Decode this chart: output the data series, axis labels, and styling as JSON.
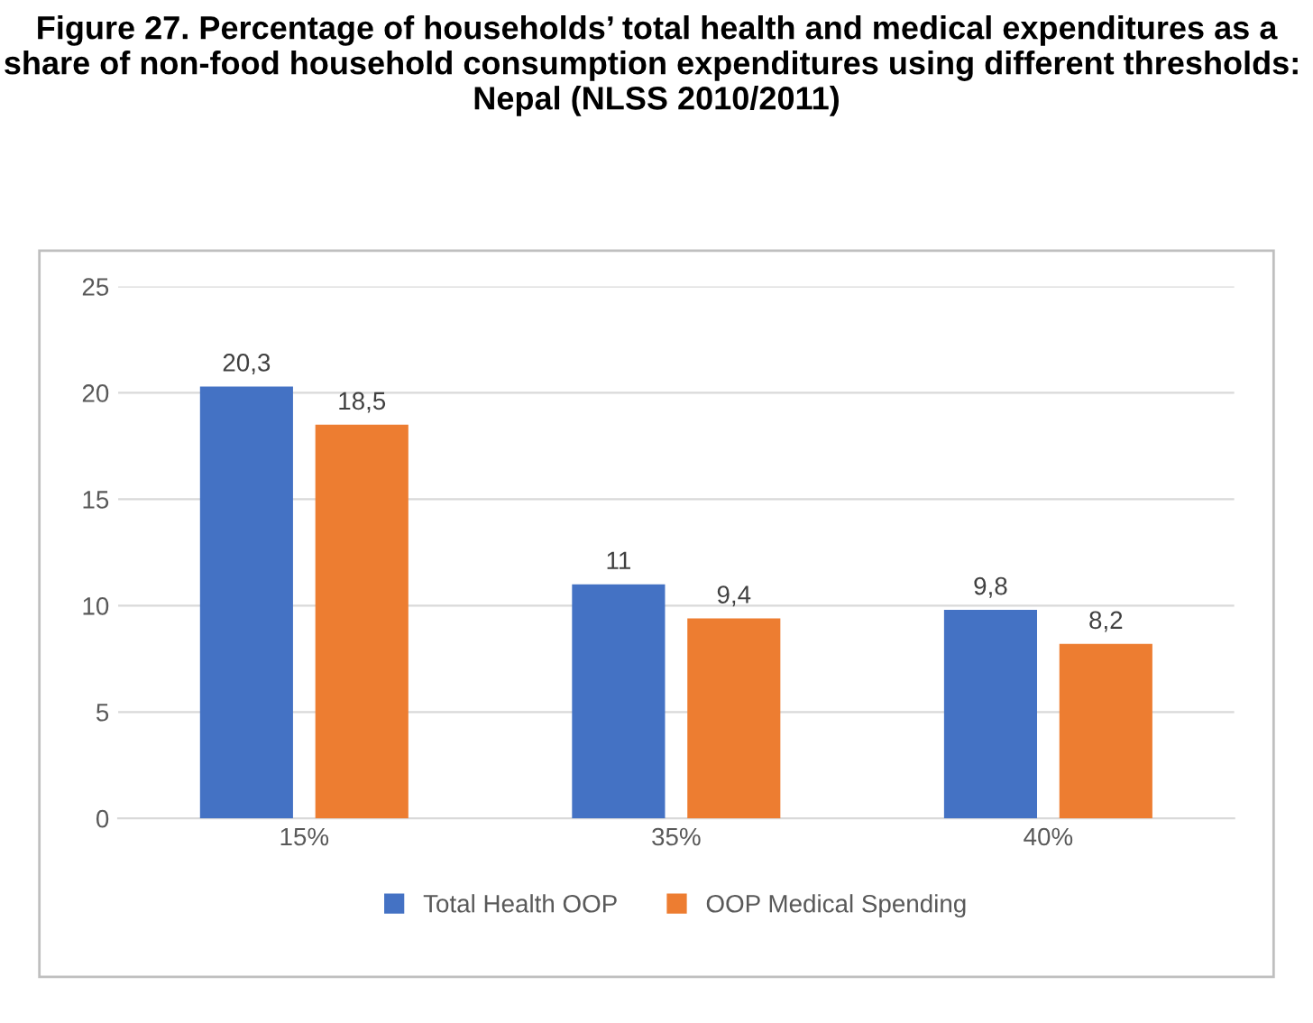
{
  "chart_data": {
    "type": "bar",
    "title": "Figure 27. Percentage of households’ total health and medical expenditures as a share of non-food household consumption expenditures using different thresholds:  Nepal (NLSS 2010/2011)",
    "categories": [
      "15%",
      "35%",
      "40%"
    ],
    "series": [
      {
        "name": "Total Health OOP",
        "color": "#4472c4",
        "values": [
          20.3,
          11,
          9.8
        ],
        "value_labels": [
          "20,3",
          "11",
          "9,8"
        ]
      },
      {
        "name": "OOP Medical Spending",
        "color": "#ed7d31",
        "values": [
          18.5,
          9.4,
          8.2
        ],
        "value_labels": [
          "18,5",
          "9,4",
          "8,2"
        ]
      }
    ],
    "ylim": [
      0,
      25
    ],
    "yticks": [
      0,
      5,
      10,
      15,
      20,
      25
    ],
    "grid": "y",
    "legend": "bottom"
  }
}
